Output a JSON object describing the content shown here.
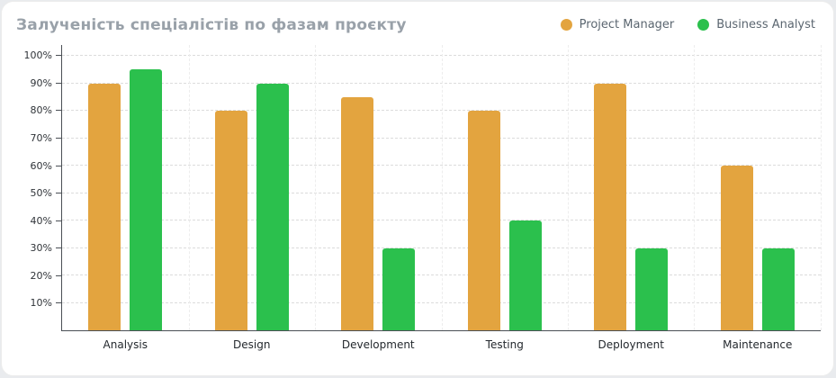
{
  "title": "Залученість спеціалістів по фазам проєкту",
  "legend": [
    {
      "label": "Project Manager",
      "color": "#E3A43F"
    },
    {
      "label": "Business Analyst",
      "color": "#2BC04D"
    }
  ],
  "chart_data": {
    "type": "bar",
    "title": "Залученість спеціалістів по фазам проєкту",
    "categories": [
      "Analysis",
      "Design",
      "Development",
      "Testing",
      "Deployment",
      "Maintenance"
    ],
    "series": [
      {
        "name": "Project Manager",
        "color": "#E3A43F",
        "values": [
          90,
          80,
          85,
          80,
          90,
          60
        ]
      },
      {
        "name": "Business Analyst",
        "color": "#2BC04D",
        "values": [
          95,
          90,
          30,
          40,
          30,
          30
        ]
      }
    ],
    "xlabel": "",
    "ylabel": "",
    "ylim": [
      0,
      104
    ],
    "axis_max": 104,
    "yticks": [
      {
        "value": 10,
        "label": "10%"
      },
      {
        "value": 20,
        "label": "20%"
      },
      {
        "value": 30,
        "label": "30%"
      },
      {
        "value": 40,
        "label": "40%"
      },
      {
        "value": 50,
        "label": "50%"
      },
      {
        "value": 60,
        "label": "60%"
      },
      {
        "value": 70,
        "label": "70%"
      },
      {
        "value": 80,
        "label": "80%"
      },
      {
        "value": 90,
        "label": "90%"
      },
      {
        "value": 100,
        "label": "100%"
      }
    ],
    "grid": true,
    "legend_position": "top-right"
  }
}
